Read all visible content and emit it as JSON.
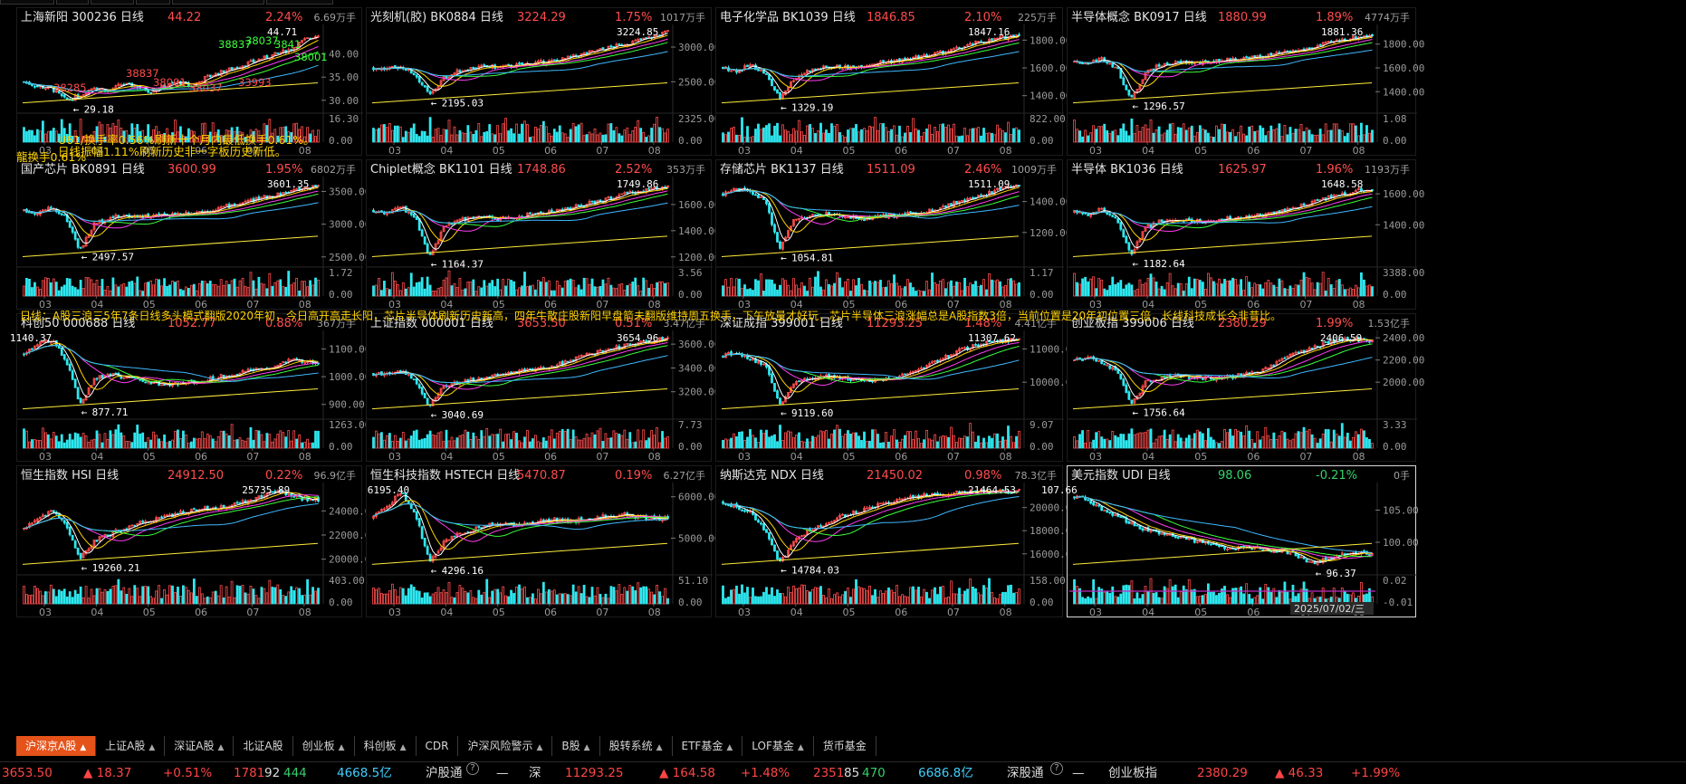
{
  "colors": {
    "up": "#ff4d4d",
    "down": "#2ee8f0",
    "ma5": "#ffffff",
    "ma10": "#ffd400",
    "ma20": "#ff3df0",
    "ma30": "#3cff3c",
    "ma60": "#3fb8ff",
    "ma250": "#ffeb3b",
    "tab_active": "#e5531a"
  },
  "top_strip": [
    "",
    "",
    "",
    "",
    "",
    ""
  ],
  "months": [
    "03",
    "04",
    "05",
    "06",
    "07",
    "08"
  ],
  "panels": [
    {
      "name": "上海新阳 300236 日线",
      "price": "44.22",
      "pct": "2.24%",
      "vol": "6.69万手",
      "y_ticks": [
        "40.00",
        "35.00",
        "30.00"
      ],
      "vol_ticks": [
        "16.30",
        "0.00"
      ],
      "hi": "44.71",
      "lo": "29.18",
      "trend": [
        34,
        33,
        32.5,
        30,
        31,
        33,
        32,
        33.5,
        33,
        32,
        33,
        34,
        33,
        35,
        36,
        37,
        38,
        39,
        40,
        41,
        43,
        44.2
      ],
      "ymin": 28,
      "ymax": 46,
      "green": false,
      "extra_labels": [
        "38837",
        "38037",
        "3841",
        "38001",
        "38285",
        "38837",
        "38037",
        "38001",
        "33993"
      ]
    },
    {
      "name": "光刻机(胶) BK0884 日线",
      "price": "3224.29",
      "pct": "1.75%",
      "vol": "1017万手",
      "y_ticks": [
        "3000.00",
        "2500.00"
      ],
      "vol_ticks": [
        "2325.00",
        "0.00"
      ],
      "hi": "3224.85",
      "lo": "2195.03",
      "trend": [
        2700,
        2680,
        2720,
        2600,
        2300,
        2550,
        2650,
        2700,
        2720,
        2710,
        2730,
        2760,
        2780,
        2800,
        2850,
        2900,
        2950,
        3000,
        3050,
        3100,
        3150,
        3224
      ],
      "ymin": 2100,
      "ymax": 3300,
      "green": false
    },
    {
      "name": "电子化学品 BK1039 日线",
      "price": "1846.85",
      "pct": "2.10%",
      "vol": "225万手",
      "y_ticks": [
        "1800.00",
        "1600.00",
        "1400.00"
      ],
      "vol_ticks": [
        "822.00",
        "0.00"
      ],
      "hi": "1847.16",
      "lo": "1329.19",
      "trend": [
        1600,
        1580,
        1620,
        1560,
        1380,
        1520,
        1580,
        1600,
        1610,
        1600,
        1620,
        1640,
        1650,
        1660,
        1680,
        1700,
        1720,
        1750,
        1780,
        1800,
        1820,
        1846
      ],
      "ymin": 1300,
      "ymax": 1900,
      "green": false
    },
    {
      "name": "半导体概念 BK0917 日线",
      "price": "1880.99",
      "pct": "1.89%",
      "vol": "4774万手",
      "y_ticks": [
        "1800.00",
        "1600.00",
        "1400.00"
      ],
      "vol_ticks": [
        "1.08",
        "0.00"
      ],
      "hi": "1881.36",
      "lo": "1296.57",
      "trend": [
        1650,
        1640,
        1680,
        1600,
        1330,
        1560,
        1620,
        1640,
        1650,
        1640,
        1660,
        1670,
        1680,
        1690,
        1710,
        1730,
        1750,
        1780,
        1810,
        1840,
        1860,
        1880
      ],
      "ymin": 1250,
      "ymax": 1950,
      "green": false
    },
    {
      "name": "国产芯片 BK0891 日线",
      "price": "3600.99",
      "pct": "1.95%",
      "vol": "6802万手",
      "y_ticks": [
        "3500.00",
        "3000.00",
        "2500.00"
      ],
      "vol_ticks": [
        "1.72",
        "0.00"
      ],
      "hi": "3601.35",
      "lo": "2497.57",
      "trend": [
        3200,
        3180,
        3250,
        3100,
        2600,
        3000,
        3100,
        3120,
        3130,
        3120,
        3140,
        3160,
        3180,
        3200,
        3250,
        3300,
        3350,
        3400,
        3450,
        3500,
        3550,
        3600
      ],
      "ymin": 2400,
      "ymax": 3700,
      "green": false
    },
    {
      "name": "Chiplet概念 BK1101 日线",
      "price": "1748.86",
      "pct": "2.52%",
      "vol": "353万手",
      "y_ticks": [
        "1600.00",
        "1400.00",
        "1200.00"
      ],
      "vol_ticks": [
        "3.56",
        "0.00"
      ],
      "hi": "1749.86",
      "lo": "1164.37",
      "trend": [
        1550,
        1540,
        1580,
        1500,
        1200,
        1420,
        1480,
        1500,
        1500,
        1490,
        1500,
        1520,
        1540,
        1550,
        1570,
        1600,
        1620,
        1650,
        1680,
        1700,
        1720,
        1748
      ],
      "ymin": 1150,
      "ymax": 1800,
      "green": false
    },
    {
      "name": "存储芯片 BK1137 日线",
      "price": "1511.09",
      "pct": "2.46%",
      "vol": "1009万手",
      "y_ticks": [
        "1400.00",
        "1200.00"
      ],
      "vol_ticks": [
        "1.17",
        "0.00"
      ],
      "hi": "1511.09",
      "lo": "1054.81",
      "trend": [
        1450,
        1480,
        1460,
        1400,
        1100,
        1280,
        1300,
        1320,
        1310,
        1300,
        1290,
        1300,
        1310,
        1320,
        1330,
        1350,
        1380,
        1400,
        1430,
        1460,
        1490,
        1511
      ],
      "ymin": 1000,
      "ymax": 1550,
      "green": false
    },
    {
      "name": "半导体 BK1036 日线",
      "price": "1625.97",
      "pct": "1.96%",
      "vol": "1193万手",
      "y_ticks": [
        "1600.00",
        "1400.00"
      ],
      "vol_ticks": [
        "3388.00",
        "0.00"
      ],
      "hi": "1648.58",
      "lo": "1182.64",
      "trend": [
        1480,
        1470,
        1500,
        1440,
        1200,
        1380,
        1420,
        1430,
        1430,
        1420,
        1430,
        1440,
        1450,
        1460,
        1480,
        1500,
        1520,
        1550,
        1580,
        1600,
        1620,
        1625
      ],
      "ymin": 1150,
      "ymax": 1700,
      "green": false
    },
    {
      "name": "科创50 000688 日线",
      "price": "1052.77",
      "pct": "0.88%",
      "vol": "367万手",
      "y_ticks": [
        "1100.00",
        "1000.00",
        "900.00"
      ],
      "vol_ticks": [
        "1263.00",
        "0.00"
      ],
      "hi": "1140.37",
      "lo": "877.71",
      "trend": [
        1080,
        1120,
        1130,
        1060,
        900,
        990,
        1010,
        1000,
        990,
        980,
        970,
        975,
        980,
        990,
        1000,
        1010,
        1020,
        1030,
        1040,
        1060,
        1050,
        1052
      ],
      "ymin": 860,
      "ymax": 1160,
      "green": false
    },
    {
      "name": "上证指数 000001 日线",
      "price": "3653.50",
      "pct": "0.51%",
      "vol": "3.47亿手",
      "y_ticks": [
        "3600.00",
        "3400.00",
        "3200.00"
      ],
      "vol_ticks": [
        "7.73",
        "0.00"
      ],
      "hi": "3654.96",
      "lo": "3040.69",
      "trend": [
        3350,
        3360,
        3380,
        3300,
        3080,
        3250,
        3280,
        3300,
        3320,
        3350,
        3370,
        3380,
        3400,
        3420,
        3460,
        3500,
        3530,
        3560,
        3590,
        3610,
        3630,
        3653
      ],
      "ymin": 3000,
      "ymax": 3700,
      "green": false
    },
    {
      "name": "深证成指 399001 日线",
      "price": "11293.25",
      "pct": "1.48%",
      "vol": "4.41亿手",
      "y_ticks": [
        "11000.00",
        "10000.00"
      ],
      "vol_ticks": [
        "9.07",
        "0.00"
      ],
      "hi": "11307.62",
      "lo": "9119.60",
      "trend": [
        10800,
        10900,
        10700,
        10500,
        9300,
        10000,
        10100,
        10200,
        10150,
        10100,
        10050,
        10100,
        10150,
        10200,
        10400,
        10600,
        10800,
        11000,
        11100,
        11200,
        11250,
        11293
      ],
      "ymin": 9000,
      "ymax": 11500,
      "green": false
    },
    {
      "name": "创业板指 399006 日线",
      "price": "2380.29",
      "pct": "1.99%",
      "vol": "1.53亿手",
      "y_ticks": [
        "2400.00",
        "2200.00",
        "2000.00"
      ],
      "vol_ticks": [
        "3.33",
        "0.00"
      ],
      "hi": "2406.59",
      "lo": "1756.64",
      "trend": [
        2200,
        2220,
        2180,
        2100,
        1790,
        2000,
        2040,
        2060,
        2050,
        2040,
        2030,
        2050,
        2070,
        2090,
        2150,
        2220,
        2280,
        2320,
        2360,
        2390,
        2380,
        2380
      ],
      "ymin": 1700,
      "ymax": 2450,
      "green": false
    },
    {
      "name": "恒生指数 HSI 日线",
      "price": "24912.50",
      "pct": "0.22%",
      "vol": "96.9亿手",
      "y_ticks": [
        "24000.00",
        "22000.00",
        "20000.00"
      ],
      "vol_ticks": [
        "403.00",
        "0.00"
      ],
      "hi": "25735.89",
      "lo": "19260.21",
      "trend": [
        22500,
        23500,
        24000,
        23000,
        20000,
        21500,
        22000,
        22500,
        23000,
        23200,
        23500,
        23800,
        24000,
        24200,
        24300,
        24500,
        24800,
        25300,
        25700,
        25400,
        25000,
        24912
      ],
      "ymin": 19000,
      "ymax": 26200,
      "green": false
    },
    {
      "name": "恒生科技指数 HSTECH 日线",
      "price": "5470.87",
      "pct": "0.19%",
      "vol": "6.27亿手",
      "y_ticks": [
        "6000.00",
        "5000.00"
      ],
      "vol_ticks": [
        "51.10",
        "0.00"
      ],
      "hi": "6195.40",
      "lo": "4296.16",
      "trend": [
        5500,
        5800,
        6100,
        5600,
        4400,
        4900,
        5100,
        5200,
        5300,
        5350,
        5300,
        5350,
        5400,
        5450,
        5400,
        5450,
        5500,
        5550,
        5600,
        5500,
        5480,
        5470
      ],
      "ymin": 4200,
      "ymax": 6300,
      "green": false
    },
    {
      "name": "纳斯达克 NDX 日线",
      "price": "21450.02",
      "pct": "0.98%",
      "vol": "78.3亿手",
      "y_ticks": [
        "20000.00",
        "18000.00",
        "16000.00"
      ],
      "vol_ticks": [
        "158.00",
        "0.00"
      ],
      "hi": "21464.53",
      "lo": "14784.03",
      "trend": [
        20500,
        20000,
        19500,
        18000,
        15200,
        17000,
        18000,
        18500,
        19000,
        19500,
        19800,
        20200,
        20500,
        20800,
        21000,
        21100,
        21200,
        21300,
        21350,
        21400,
        21420,
        21450
      ],
      "ymin": 14500,
      "ymax": 22000,
      "green": false
    },
    {
      "name": "美元指数 UDI 日线",
      "price": "98.06",
      "pct": "-0.21%",
      "vol": "0手",
      "y_ticks": [
        "105.00",
        "100.00"
      ],
      "vol_ticks": [
        "0.02",
        "-0.01"
      ],
      "hi": "107.66",
      "lo": "96.37",
      "trend": [
        107,
        106.5,
        105,
        104,
        103,
        102,
        101.5,
        101,
        100.5,
        100,
        99.5,
        99,
        99.5,
        99,
        98.8,
        98.5,
        97.5,
        96.8,
        97.5,
        98.2,
        98.5,
        98.06
      ],
      "ymin": 95.5,
      "ymax": 109,
      "green": true,
      "date_tag": "2025/07/02/三"
    }
  ],
  "notes": {
    "p0_a": "U61/换手率0.56%刷新十个月内最低换手0.61%。",
    "p0_b": "日线振幅1.11%刷新历史非一字板历史新低。",
    "p0_c": "龍换手0.61%",
    "row2": "日线：A股三浪三5年7条日线多头模式翻版2020年初，今日高开高走长阳，芯片半导体刷新历史新高，四年牛散庄股新阳早盘箭未翻版维持周五换手，下午放量才好玩，芯片半导体三浪涨幅总是A股指数3倍，当前位置是20年初位置三倍，长线科技成长今非昔比。"
  },
  "tabs": [
    {
      "label": "沪深京A股",
      "caret": true,
      "active": true
    },
    {
      "label": "上证A股",
      "caret": true
    },
    {
      "label": "深证A股",
      "caret": true
    },
    {
      "label": "北证A股",
      "caret": false
    },
    {
      "label": "创业板",
      "caret": true
    },
    {
      "label": "科创板",
      "caret": true
    },
    {
      "label": "CDR",
      "caret": false
    },
    {
      "label": "沪深风险警示",
      "caret": true
    },
    {
      "label": "B股",
      "caret": true
    },
    {
      "label": "股转系统",
      "caret": true
    },
    {
      "label": "ETF基金",
      "caret": true
    },
    {
      "label": "LOF基金",
      "caret": true
    },
    {
      "label": "货币基金",
      "caret": false
    }
  ],
  "status": {
    "sh_price": "3653.50",
    "sh_chg": "▲ 18.37",
    "sh_pct": "+0.51%",
    "sh_up": "1781",
    "sh_flat": "92",
    "sh_down": "444",
    "sh_amt": "4668.5亿",
    "hgt": "沪股通",
    "q1": "?",
    "dash1": "—",
    "sz_label": "深",
    "sz_price": "11293.25",
    "sz_chg": "▲ 164.58",
    "sz_pct": "+1.48%",
    "sz_up": "2351",
    "sz_flat": "85",
    "sz_down": "470",
    "sz_amt": "6686.8亿",
    "sgt": "深股通",
    "q2": "?",
    "dash2": "—",
    "cyb_label": "创业板指",
    "cyb_price": "2380.29",
    "cyb_chg": "▲ 46.33",
    "cyb_pct": "+1.99%"
  }
}
